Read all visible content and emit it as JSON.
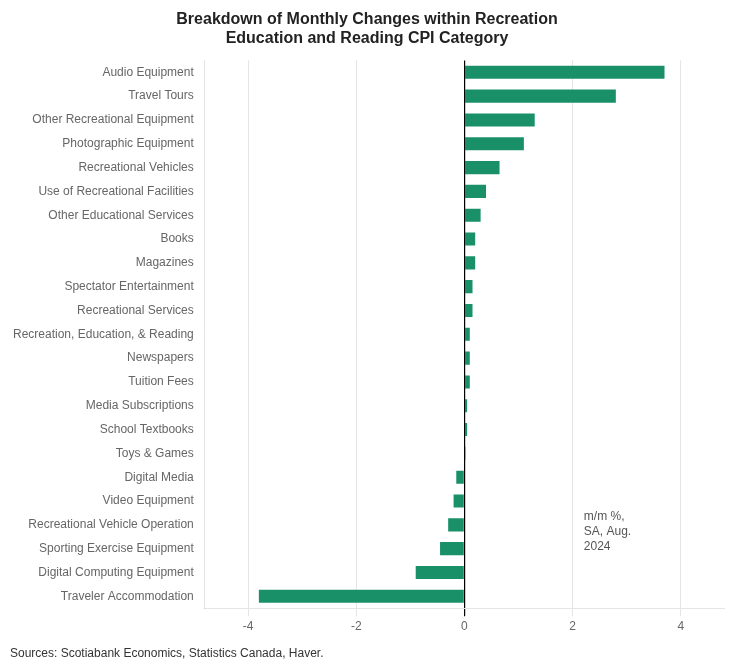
{
  "chart_data": {
    "type": "bar",
    "orientation": "horizontal",
    "title": "Breakdown of Monthly Changes within Recreation\nEducation and Reading CPI Category",
    "categories": [
      "Audio Equipment",
      "Travel Tours",
      "Other Recreational Equipment",
      "Photographic Equipment",
      "Recreational Vehicles",
      "Use of Recreational Facilities",
      "Other Educational Services",
      "Books",
      "Magazines",
      "Spectator Entertainment",
      "Recreational Services",
      "Recreation, Education, & Reading",
      "Newspapers",
      "Tuition Fees",
      "Media Subscriptions",
      "School Textbooks",
      "Toys & Games",
      "Digital Media",
      "Video Equipment",
      "Recreational Vehicle Operation",
      "Sporting Exercise Equipment",
      "Digital Computing Equipment",
      "Traveler Accommodation"
    ],
    "values": [
      3.7,
      2.8,
      1.3,
      1.1,
      0.65,
      0.4,
      0.3,
      0.2,
      0.2,
      0.15,
      0.15,
      0.1,
      0.1,
      0.1,
      0.05,
      0.05,
      0.02,
      -0.15,
      -0.2,
      -0.3,
      -0.45,
      -0.9,
      -3.8
    ],
    "color": "#1a9068",
    "xlim": [
      -4.8,
      4.8
    ],
    "xticks": [
      -4,
      -2,
      0,
      2,
      4
    ],
    "grid": true,
    "annotation": "m/m %,\nSA, Aug.\n2024",
    "source": "Sources: Scotiabank Economics, Statistics Canada, Haver."
  }
}
